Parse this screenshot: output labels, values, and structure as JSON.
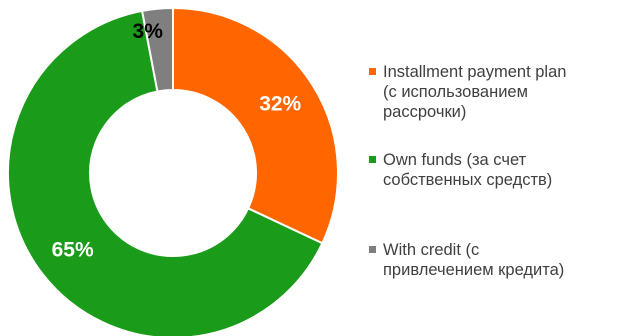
{
  "chart_data": {
    "type": "pie",
    "style": "donut",
    "slices": [
      {
        "label": "32%",
        "value": 32,
        "color": "#ff6600",
        "label_color": "#ffffff",
        "legend": "Installment payment plan\n(с использованием\nрассрочки)"
      },
      {
        "label": "65%",
        "value": 65,
        "color": "#1a9c1a",
        "label_color": "#ffffff",
        "legend": "Own funds (за счет\nсобственных средств)"
      },
      {
        "label": "3%",
        "value": 3,
        "color": "#7f7f7f",
        "label_color": "#000000",
        "legend": "With credit (с\nпривлечением кредита)"
      }
    ],
    "start_angle_deg": 0,
    "direction": "clockwise",
    "legend_position": "right"
  }
}
